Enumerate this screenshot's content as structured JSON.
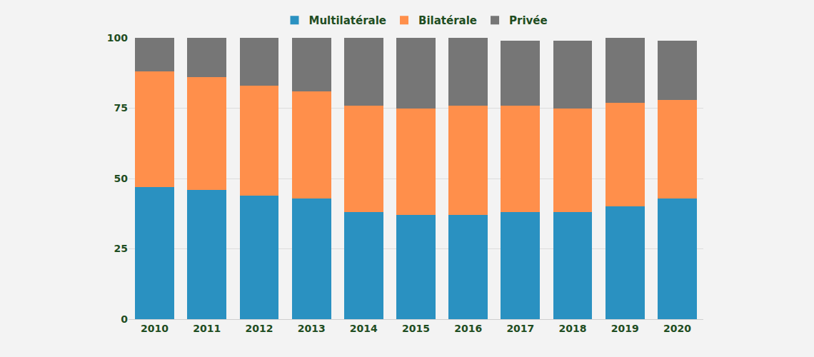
{
  "chart_data": {
    "type": "bar",
    "stacked": true,
    "grid": true,
    "legend": "top",
    "categories": [
      "2010",
      "2011",
      "2012",
      "2013",
      "2014",
      "2015",
      "2016",
      "2017",
      "2018",
      "2019",
      "2020"
    ],
    "series": [
      {
        "name": "Multilatérale",
        "color": "#2a91c1",
        "values": [
          47,
          46,
          44,
          43,
          38,
          37,
          37,
          38,
          38,
          40,
          43
        ]
      },
      {
        "name": "Bilatérale",
        "color": "#ff8f4b",
        "values": [
          41,
          40,
          39,
          38,
          38,
          38,
          39,
          38,
          37,
          37,
          35
        ]
      },
      {
        "name": "Privée",
        "color": "#767676",
        "values": [
          12,
          14,
          17,
          19,
          24,
          25,
          24,
          23,
          24,
          23,
          21
        ]
      }
    ],
    "ylim": [
      0,
      100
    ],
    "yticks": [
      0,
      25,
      50,
      75,
      100
    ]
  }
}
